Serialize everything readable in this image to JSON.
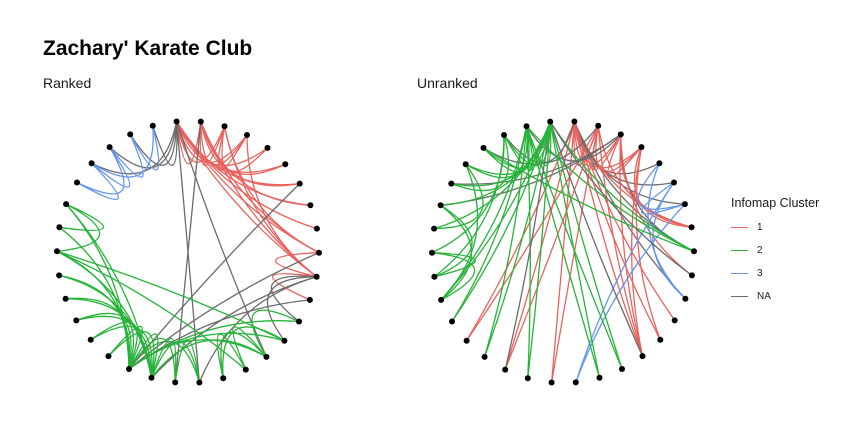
{
  "title": "Zachary' Karate Club",
  "panels": [
    {
      "subtitle": "Ranked"
    },
    {
      "subtitle": "Unranked"
    }
  ],
  "legend": {
    "title": "Infomap Cluster",
    "items": [
      {
        "label": "1",
        "color": "#e8635e"
      },
      {
        "label": "2",
        "color": "#27b33a"
      },
      {
        "label": "3",
        "color": "#6495ed"
      },
      {
        "label": "NA",
        "color": "#6b6b6b"
      }
    ]
  },
  "graph": {
    "nodes": 34,
    "edges": [
      [
        1,
        2
      ],
      [
        1,
        3
      ],
      [
        1,
        4
      ],
      [
        1,
        5
      ],
      [
        1,
        6
      ],
      [
        1,
        7
      ],
      [
        1,
        8
      ],
      [
        1,
        9
      ],
      [
        1,
        11
      ],
      [
        1,
        12
      ],
      [
        1,
        13
      ],
      [
        1,
        14
      ],
      [
        1,
        18
      ],
      [
        1,
        20
      ],
      [
        1,
        22
      ],
      [
        1,
        32
      ],
      [
        2,
        3
      ],
      [
        2,
        4
      ],
      [
        2,
        8
      ],
      [
        2,
        14
      ],
      [
        2,
        18
      ],
      [
        2,
        20
      ],
      [
        2,
        22
      ],
      [
        2,
        31
      ],
      [
        3,
        4
      ],
      [
        3,
        8
      ],
      [
        3,
        9
      ],
      [
        3,
        10
      ],
      [
        3,
        14
      ],
      [
        3,
        28
      ],
      [
        3,
        29
      ],
      [
        3,
        33
      ],
      [
        4,
        8
      ],
      [
        4,
        13
      ],
      [
        4,
        14
      ],
      [
        5,
        7
      ],
      [
        5,
        11
      ],
      [
        6,
        7
      ],
      [
        6,
        11
      ],
      [
        6,
        17
      ],
      [
        7,
        17
      ],
      [
        9,
        31
      ],
      [
        9,
        33
      ],
      [
        9,
        34
      ],
      [
        10,
        34
      ],
      [
        14,
        34
      ],
      [
        15,
        33
      ],
      [
        15,
        34
      ],
      [
        16,
        33
      ],
      [
        16,
        34
      ],
      [
        19,
        33
      ],
      [
        19,
        34
      ],
      [
        20,
        34
      ],
      [
        21,
        33
      ],
      [
        21,
        34
      ],
      [
        23,
        33
      ],
      [
        23,
        34
      ],
      [
        24,
        26
      ],
      [
        24,
        28
      ],
      [
        24,
        30
      ],
      [
        24,
        33
      ],
      [
        24,
        34
      ],
      [
        25,
        26
      ],
      [
        25,
        28
      ],
      [
        25,
        32
      ],
      [
        26,
        32
      ],
      [
        27,
        30
      ],
      [
        27,
        34
      ],
      [
        28,
        34
      ],
      [
        29,
        32
      ],
      [
        29,
        34
      ],
      [
        30,
        33
      ],
      [
        30,
        34
      ],
      [
        31,
        33
      ],
      [
        31,
        34
      ],
      [
        32,
        33
      ],
      [
        32,
        34
      ],
      [
        33,
        34
      ]
    ],
    "membership": [
      1,
      1,
      1,
      1,
      3,
      3,
      3,
      1,
      2,
      1,
      3,
      1,
      1,
      1,
      2,
      2,
      3,
      1,
      2,
      1,
      2,
      1,
      2,
      2,
      2,
      2,
      2,
      2,
      2,
      2,
      2,
      2,
      2,
      2
    ],
    "ranked_order": [
      1,
      2,
      4,
      8,
      13,
      18,
      20,
      22,
      12,
      14,
      3,
      10,
      29,
      28,
      32,
      26,
      25,
      9,
      31,
      33,
      34,
      16,
      15,
      19,
      21,
      23,
      24,
      27,
      30,
      17,
      7,
      6,
      11,
      5
    ]
  }
}
